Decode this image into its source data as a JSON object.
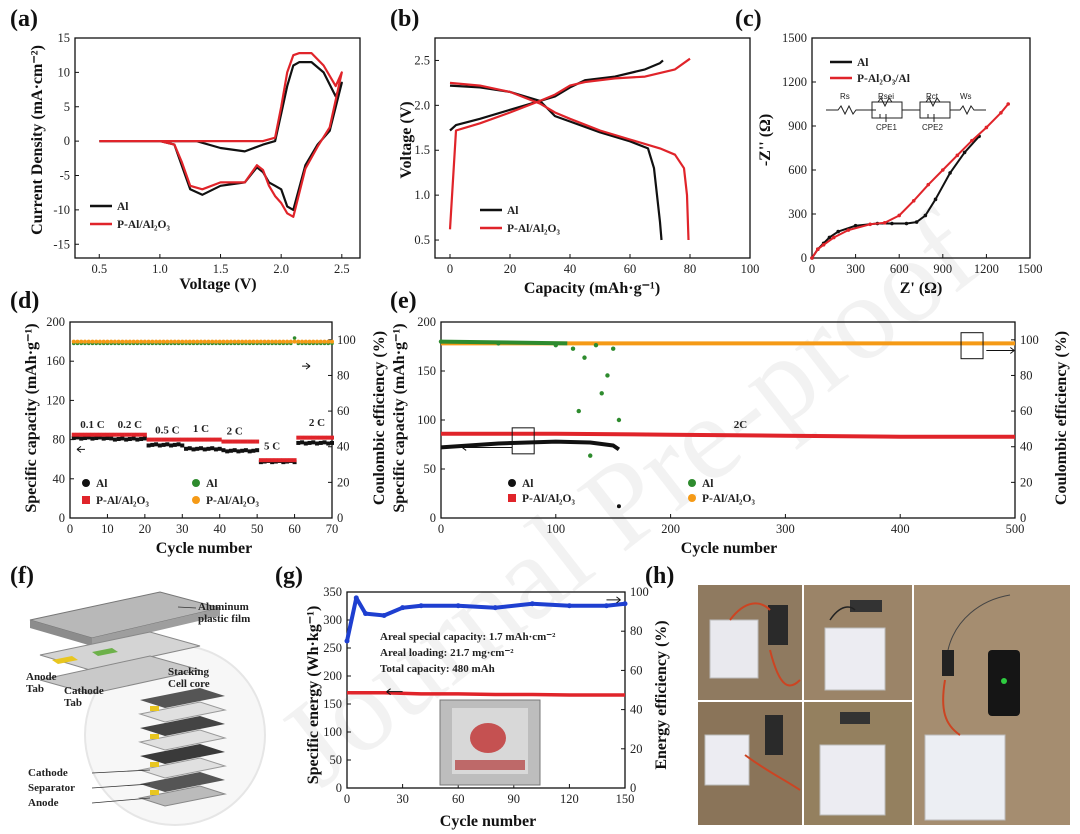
{
  "watermark": "Journal Pre-proof",
  "colors": {
    "al": "#111111",
    "pal": "#e0242a",
    "al_ce": "#2e8b2e",
    "pal_ce": "#f59a16",
    "blue": "#1e3fd0"
  },
  "panels": {
    "a": {
      "label": "(a)",
      "xlabel": "Voltage (V)",
      "ylabel": "Current Density (mA·cm⁻²)",
      "xticks": [
        "0.5",
        "1.0",
        "1.5",
        "2.0",
        "2.5"
      ],
      "yticks": [
        "15",
        "10",
        "5",
        "0",
        "-5",
        "-10",
        "-15"
      ],
      "legend": [
        "Al",
        "P-Al/Al₂O₃"
      ]
    },
    "b": {
      "label": "(b)",
      "xlabel": "Capacity (mAh·g⁻¹)",
      "ylabel": "Voltage (V)",
      "xticks": [
        "0",
        "20",
        "40",
        "60",
        "80",
        "100"
      ],
      "yticks": [
        "2.5",
        "2.0",
        "1.5",
        "1.0",
        "0.5"
      ],
      "legend": [
        "Al",
        "P-Al/Al₂O₃"
      ]
    },
    "c": {
      "label": "(c)",
      "xlabel": "Z' (Ω)",
      "ylabel": "-Z'' (Ω)",
      "xticks": [
        "0",
        "300",
        "600",
        "900",
        "1200",
        "1500"
      ],
      "yticks": [
        "1500",
        "1200",
        "900",
        "600",
        "300",
        "0"
      ],
      "legend": [
        "Al",
        "P-Al₂O₃/Al"
      ],
      "circuit": [
        "Rs",
        "Rsei",
        "Rct",
        "Ws",
        "CPE1",
        "CPE2"
      ]
    },
    "d": {
      "label": "(d)",
      "xlabel": "Cycle number",
      "ylabel": "Specific capacity (mAh·g⁻¹)",
      "y2label": "Coulombic efficiency (%)",
      "xticks": [
        "0",
        "10",
        "20",
        "30",
        "40",
        "50",
        "60",
        "70"
      ],
      "yticks": [
        "200",
        "160",
        "120",
        "80",
        "40",
        "0"
      ],
      "y2ticks": [
        "100",
        "80",
        "60",
        "40",
        "20",
        "0"
      ],
      "rates": [
        "0.1 C",
        "0.2 C",
        "0.5 C",
        "1 C",
        "2 C",
        "5 C",
        "2 C"
      ],
      "legend": [
        "Al",
        "Al",
        "P-Al/Al₂O₃",
        "P-Al/Al₂O₃"
      ]
    },
    "e": {
      "label": "(e)",
      "xlabel": "Cycle number",
      "ylabel": "Specific capacity (mAh·g⁻¹)",
      "y2label": "Coulombic efficiency (%)",
      "xticks": [
        "0",
        "100",
        "200",
        "300",
        "400",
        "500"
      ],
      "yticks": [
        "200",
        "150",
        "100",
        "50",
        "0"
      ],
      "y2ticks": [
        "100",
        "80",
        "60",
        "40",
        "20",
        "0"
      ],
      "rate": "2C",
      "legend": [
        "Al",
        "Al",
        "P-Al/Al₂O₃",
        "P-Al/Al₂O₃"
      ]
    },
    "f": {
      "label": "(f)",
      "callouts": [
        "Aluminum",
        "plastic film",
        "Stacking",
        "Cell core",
        "Anode",
        "Tab",
        "Cathode",
        "Tab",
        "Cathode",
        "Separator",
        "Anode"
      ]
    },
    "g": {
      "label": "(g)",
      "xlabel": "Cycle number",
      "ylabel": "Specific energy (Wh·kg⁻¹)",
      "y2label": "Energy efficiency (%)",
      "xticks": [
        "0",
        "30",
        "60",
        "90",
        "120",
        "150"
      ],
      "yticks": [
        "350",
        "300",
        "250",
        "200",
        "150",
        "100",
        "50",
        "0"
      ],
      "y2ticks": [
        "100",
        "80",
        "60",
        "40",
        "20",
        "0"
      ],
      "notes": [
        "Areal special capacity: 1.7 mAh·cm⁻²",
        "Areal loading: 21.7 mg·cm⁻²",
        "Total capacity: 480 mAh"
      ]
    },
    "h": {
      "label": "(h)"
    }
  },
  "chart_data": [
    {
      "panel": "a",
      "type": "line",
      "title": "",
      "xlabel": "Voltage (V)",
      "ylabel": "Current Density (mA·cm⁻²)",
      "xlim": [
        0.3,
        2.65
      ],
      "ylim": [
        -17,
        15
      ],
      "series": [
        {
          "name": "Al",
          "x": [
            0.5,
            1.0,
            1.12,
            1.18,
            1.25,
            1.35,
            1.5,
            1.7,
            1.8,
            1.85,
            1.9,
            1.95,
            2.0,
            2.05,
            2.1,
            2.2,
            2.3,
            2.4,
            2.5,
            2.45,
            2.35,
            2.25,
            2.15,
            2.1,
            2.05,
            2.0,
            1.95,
            1.85,
            1.7,
            1.5,
            1.3,
            1.15,
            1.0,
            0.5
          ],
          "y": [
            0,
            0,
            -0.5,
            -3.5,
            -7,
            -7.8,
            -6.5,
            -6.0,
            -3.8,
            -4.5,
            -6.0,
            -6.5,
            -7.0,
            -9.5,
            -10.0,
            -3.5,
            -0.5,
            1.5,
            8.5,
            6.5,
            10.0,
            11.5,
            11.5,
            11.0,
            8.0,
            4.0,
            0,
            -0.5,
            -1.5,
            -1.0,
            0,
            0,
            0,
            0
          ]
        },
        {
          "name": "P-Al/Al₂O₃",
          "x": [
            0.5,
            1.0,
            1.12,
            1.18,
            1.25,
            1.35,
            1.5,
            1.7,
            1.8,
            1.85,
            1.9,
            1.95,
            2.0,
            2.05,
            2.1,
            2.2,
            2.3,
            2.4,
            2.5,
            2.45,
            2.35,
            2.25,
            2.15,
            2.1,
            2.05,
            2.0,
            1.95,
            1.85,
            1.7,
            1.5,
            1.3,
            1.15,
            1.0,
            0.5
          ],
          "y": [
            0,
            0,
            -0.5,
            -3.0,
            -6.5,
            -7.0,
            -6.0,
            -6.0,
            -3.5,
            -4.2,
            -6.5,
            -8.0,
            -9.0,
            -10.5,
            -11.0,
            -4.0,
            -0.8,
            2.0,
            10.0,
            8.0,
            11.0,
            12.8,
            12.8,
            12.5,
            10.0,
            5.0,
            0.5,
            0,
            0,
            0,
            0,
            0,
            0,
            0
          ]
        }
      ]
    },
    {
      "panel": "b",
      "type": "line",
      "title": "",
      "xlabel": "Capacity (mAh·g⁻¹)",
      "ylabel": "Voltage (V)",
      "xlim": [
        -5,
        100
      ],
      "ylim": [
        0.3,
        2.75
      ],
      "series": [
        {
          "name": "Al charge",
          "x": [
            0,
            2,
            10,
            20,
            30,
            35,
            40,
            45,
            55,
            65,
            70,
            71
          ],
          "y": [
            1.72,
            1.78,
            1.85,
            1.95,
            2.05,
            2.1,
            2.2,
            2.28,
            2.32,
            2.4,
            2.47,
            2.5
          ]
        },
        {
          "name": "Al discharge",
          "x": [
            0,
            10,
            20,
            30,
            35,
            40,
            50,
            60,
            66,
            68,
            69,
            70,
            70.5
          ],
          "y": [
            2.22,
            2.2,
            2.15,
            2.05,
            1.88,
            1.82,
            1.7,
            1.6,
            1.52,
            1.3,
            1.0,
            0.7,
            0.5
          ]
        },
        {
          "name": "P-Al/Al₂O₃ charge",
          "x": [
            0,
            2,
            10,
            20,
            30,
            35,
            40,
            45,
            55,
            65,
            75,
            80
          ],
          "y": [
            0.62,
            1.72,
            1.8,
            1.92,
            2.05,
            2.12,
            2.22,
            2.26,
            2.3,
            2.32,
            2.4,
            2.52
          ]
        },
        {
          "name": "P-Al/Al₂O₃ discharge",
          "x": [
            0,
            10,
            20,
            30,
            35,
            40,
            50,
            60,
            70,
            75,
            78,
            79,
            79.5
          ],
          "y": [
            2.25,
            2.22,
            2.15,
            2.02,
            1.92,
            1.85,
            1.72,
            1.62,
            1.52,
            1.45,
            1.3,
            1.0,
            0.5
          ]
        }
      ]
    },
    {
      "panel": "c",
      "type": "line",
      "title": "",
      "xlabel": "Z' (Ω)",
      "ylabel": "-Z'' (Ω)",
      "xlim": [
        0,
        1500
      ],
      "ylim": [
        0,
        1500
      ],
      "series": [
        {
          "name": "Al",
          "x": [
            0,
            40,
            80,
            120,
            180,
            300,
            450,
            550,
            650,
            720,
            780,
            850,
            950,
            1050,
            1150
          ],
          "y": [
            0,
            60,
            100,
            140,
            180,
            220,
            235,
            235,
            235,
            245,
            290,
            400,
            580,
            720,
            830
          ]
        },
        {
          "name": "P-Al₂O₃/Al",
          "x": [
            0,
            40,
            80,
            150,
            250,
            400,
            500,
            600,
            700,
            800,
            900,
            1000,
            1100,
            1200,
            1300,
            1350
          ],
          "y": [
            0,
            60,
            90,
            140,
            190,
            230,
            240,
            290,
            390,
            500,
            600,
            700,
            800,
            890,
            990,
            1050
          ]
        }
      ]
    },
    {
      "panel": "d",
      "type": "scatter",
      "title": "",
      "xlabel": "Cycle number",
      "ylabel": "Specific capacity (mAh·g⁻¹)",
      "y2label": "Coulombic efficiency (%)",
      "xlim": [
        0,
        70
      ],
      "ylim": [
        0,
        200
      ],
      "y2lim": [
        0,
        110
      ],
      "rates": [
        "0.1 C",
        "0.2 C",
        "0.5 C",
        "1 C",
        "2 C",
        "5 C",
        "2 C"
      ],
      "series": [
        {
          "name": "Al",
          "axis": "left",
          "segments": [
            [
              1,
              10,
              82
            ],
            [
              11,
              20,
              81
            ],
            [
              21,
              30,
              75
            ],
            [
              31,
              40,
              71
            ],
            [
              41,
              50,
              69
            ],
            [
              51,
              60,
              58
            ],
            [
              61,
              70,
              77
            ]
          ]
        },
        {
          "name": "P-Al/Al₂O₃",
          "axis": "left",
          "segments": [
            [
              1,
              10,
              85
            ],
            [
              11,
              20,
              85
            ],
            [
              21,
              30,
              80
            ],
            [
              31,
              40,
              80
            ],
            [
              41,
              50,
              78
            ],
            [
              51,
              60,
              59
            ],
            [
              61,
              70,
              82
            ]
          ]
        },
        {
          "name": "Al",
          "axis": "right",
          "value": 98
        },
        {
          "name": "P-Al/Al₂O₃",
          "axis": "right",
          "value": 99
        }
      ]
    },
    {
      "panel": "e",
      "type": "scatter",
      "title": "",
      "xlabel": "Cycle number",
      "ylabel": "Specific capacity (mAh·g⁻¹)",
      "y2label": "Coulombic efficiency (%)",
      "xlim": [
        0,
        500
      ],
      "ylim": [
        0,
        200
      ],
      "y2lim": [
        0,
        110
      ],
      "series": [
        {
          "name": "Al",
          "axis": "left",
          "x": [
            0,
            50,
            100,
            130,
            150,
            155
          ],
          "y": [
            72,
            76,
            78,
            77,
            74,
            70
          ]
        },
        {
          "name": "P-Al/Al₂O₃",
          "axis": "left",
          "x": [
            0,
            100,
            200,
            300,
            400,
            500
          ],
          "y": [
            86,
            86,
            85,
            84,
            83,
            83
          ]
        },
        {
          "name": "Al",
          "axis": "right",
          "x": [
            0,
            50,
            100,
            115,
            120,
            125,
            130,
            135,
            140,
            145,
            150,
            155
          ],
          "y": [
            99,
            98,
            97,
            95,
            60,
            90,
            35,
            97,
            70,
            80,
            95,
            55
          ]
        },
        {
          "name": "P-Al/Al₂O₃",
          "axis": "right",
          "x": [
            0,
            100,
            200,
            300,
            400,
            500
          ],
          "y": [
            98,
            98,
            98,
            98,
            98,
            98
          ]
        }
      ]
    },
    {
      "panel": "g",
      "type": "scatter",
      "title": "",
      "xlabel": "Cycle number",
      "ylabel": "Specific energy (Wh·kg⁻¹)",
      "y2label": "Energy efficiency (%)",
      "xlim": [
        0,
        150
      ],
      "ylim": [
        0,
        350
      ],
      "y2lim": [
        0,
        100
      ],
      "series": [
        {
          "name": "Specific energy",
          "axis": "left",
          "x": [
            0,
            20,
            40,
            60,
            80,
            100,
            120,
            140,
            150
          ],
          "y": [
            170,
            170,
            168,
            168,
            167,
            167,
            166,
            166,
            166
          ]
        },
        {
          "name": "Energy efficiency",
          "axis": "right",
          "x": [
            0,
            5,
            10,
            20,
            30,
            40,
            60,
            80,
            100,
            120,
            140,
            150
          ],
          "y": [
            75,
            97,
            89,
            88,
            92,
            93,
            93,
            92,
            94,
            93,
            93,
            94
          ]
        }
      ]
    }
  ]
}
